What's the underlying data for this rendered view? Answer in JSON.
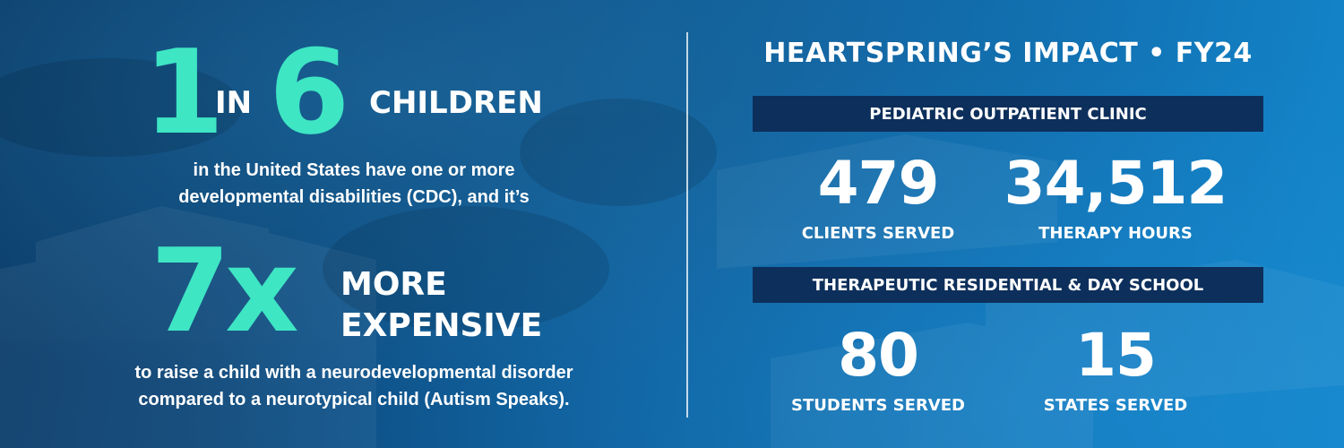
{
  "left": {
    "stat1": {
      "big1": "1",
      "word1": "IN",
      "big2": "6",
      "word2": "CHILDREN"
    },
    "line1": "in the United States have one or more",
    "line2": "developmental disabilities (CDC), and it’s",
    "stat2": {
      "big": "7x",
      "word1": "MORE",
      "word2": "EXPENSIVE"
    },
    "line3": "to raise a child with a neurodevelopmental disorder",
    "line4": "compared to a neurotypical child (Autism Speaks)."
  },
  "right": {
    "title": "HEARTSPRING’S IMPACT • FY24",
    "section1": {
      "heading": "PEDIATRIC OUTPATIENT CLINIC",
      "stats": [
        {
          "value": "479",
          "label": "CLIENTS SERVED"
        },
        {
          "value": "34,512",
          "label": "THERAPY HOURS"
        }
      ]
    },
    "section2": {
      "heading": "THERAPEUTIC RESIDENTIAL & DAY SCHOOL",
      "stats": [
        {
          "value": "80",
          "label": "STUDENTS SERVED"
        },
        {
          "value": "15",
          "label": "STATES SERVED"
        }
      ]
    }
  },
  "colors": {
    "accent": "#3ee6c4",
    "band": "#0d2f5b",
    "background": "#0d4f86"
  }
}
